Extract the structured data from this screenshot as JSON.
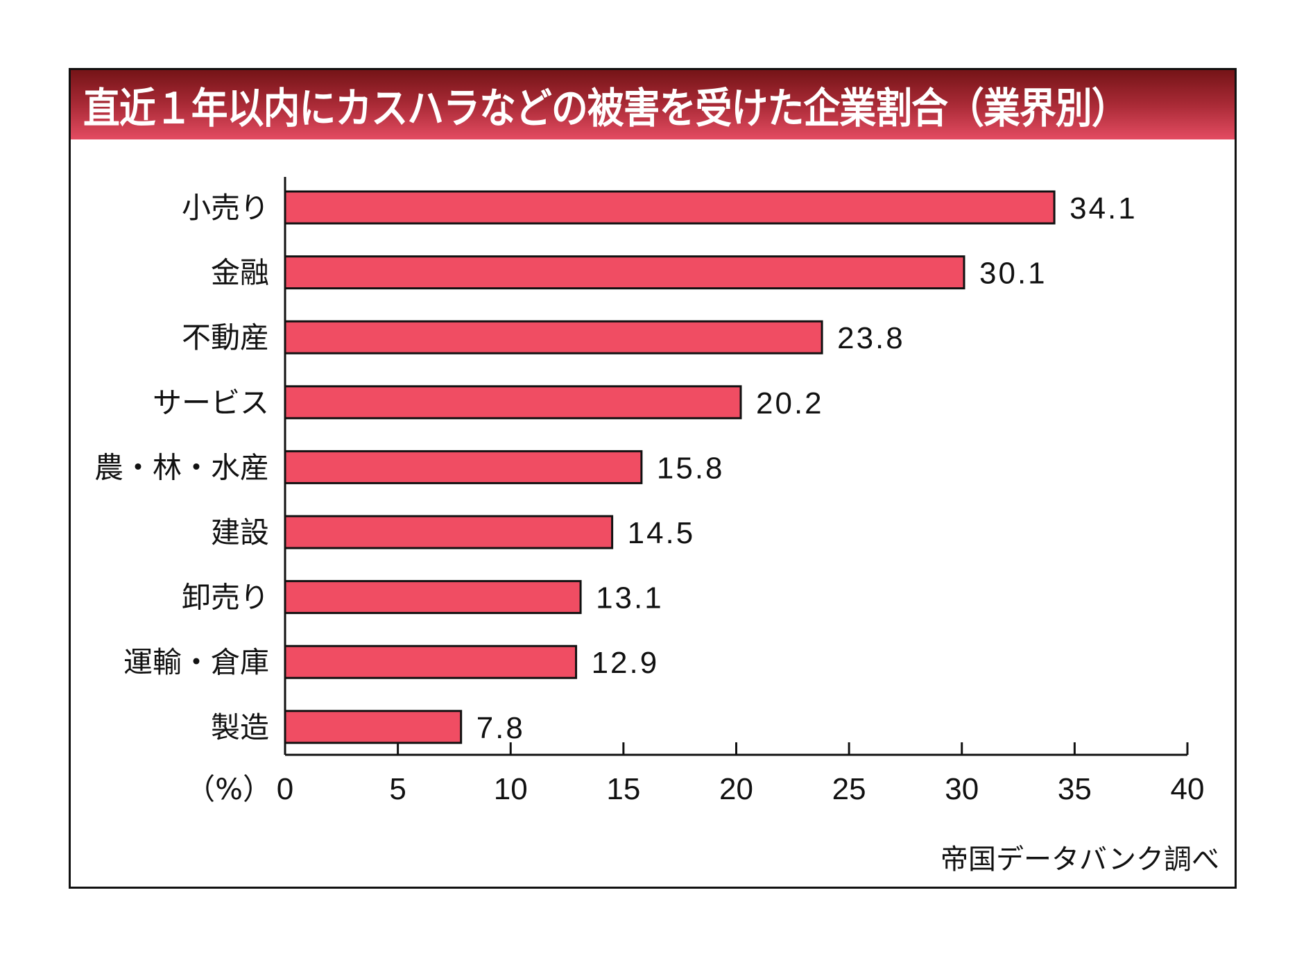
{
  "chart_data": {
    "type": "bar",
    "orientation": "horizontal",
    "title": "直近１年以内にカスハラなどの被害を受けた企業割合（業界別）",
    "categories": [
      "小売り",
      "金融",
      "不動産",
      "サービス",
      "農・林・水産",
      "建設",
      "卸売り",
      "運輸・倉庫",
      "製造"
    ],
    "values": [
      34.1,
      30.1,
      23.8,
      20.2,
      15.8,
      14.5,
      13.1,
      12.9,
      7.8
    ],
    "value_labels": [
      "34.1",
      "30.1",
      "23.8",
      "20.2",
      "15.8",
      "14.5",
      "13.1",
      "12.9",
      "7.8"
    ],
    "xlabel": "（%）",
    "ylabel": "",
    "xlim": [
      0,
      40
    ],
    "xticks": [
      0,
      5,
      10,
      15,
      20,
      25,
      30,
      35,
      40
    ],
    "xtick_labels": [
      "0",
      "5",
      "10",
      "15",
      "20",
      "25",
      "30",
      "35",
      "40"
    ],
    "grid": false,
    "bar_color": "#f04d63",
    "source": "帝国データバンク調べ"
  }
}
